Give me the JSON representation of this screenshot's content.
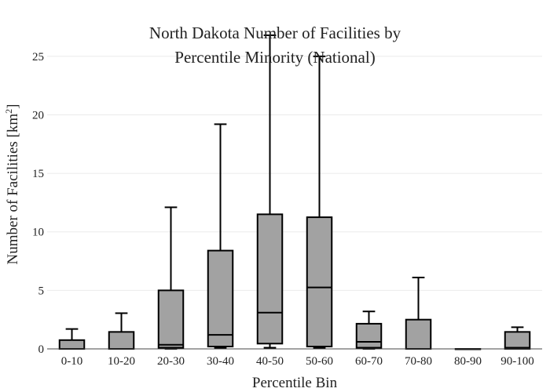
{
  "chart_data": {
    "type": "box",
    "title_lines": [
      "North Dakota Number of Facilities by",
      "Percentile Minority (National)"
    ],
    "xlabel": "Percentile Bin",
    "ylabel_main": "Number of Facilities  [km",
    "ylabel_sup": "2",
    "ylabel_end": "]",
    "ylim": [
      0,
      26.8
    ],
    "yticks": [
      0,
      5,
      10,
      15,
      20,
      25
    ],
    "grid": true,
    "colors": {
      "box_fill": "#a2a2a2",
      "box_stroke": "#000000",
      "grid": "#ebebeb"
    },
    "categories": [
      "0-10",
      "10-20",
      "20-30",
      "30-40",
      "40-50",
      "50-60",
      "60-70",
      "70-80",
      "80-90",
      "90-100"
    ],
    "boxes": [
      {
        "min": 0,
        "q1": 0,
        "median": 0,
        "q3": 0.75,
        "max": 1.7
      },
      {
        "min": 0,
        "q1": 0,
        "median": 0,
        "q3": 1.45,
        "max": 3.05
      },
      {
        "min": 0,
        "q1": 0.1,
        "median": 0.35,
        "q3": 5.0,
        "max": 12.1
      },
      {
        "min": 0.1,
        "q1": 0.2,
        "median": 1.2,
        "q3": 8.4,
        "max": 19.2
      },
      {
        "min": 0.1,
        "q1": 0.45,
        "median": 3.1,
        "q3": 11.5,
        "max": 26.8
      },
      {
        "min": 0.1,
        "q1": 0.2,
        "median": 5.25,
        "q3": 11.25,
        "max": 25.0
      },
      {
        "min": 0,
        "q1": 0.1,
        "median": 0.6,
        "q3": 2.15,
        "max": 3.2
      },
      {
        "min": 0,
        "q1": 0,
        "median": 0,
        "q3": 2.5,
        "max": 6.1
      },
      {
        "min": 0,
        "q1": 0,
        "median": 0,
        "q3": 0,
        "max": 0
      },
      {
        "min": 0,
        "q1": 0,
        "median": 0.1,
        "q3": 1.45,
        "max": 1.85
      }
    ]
  }
}
